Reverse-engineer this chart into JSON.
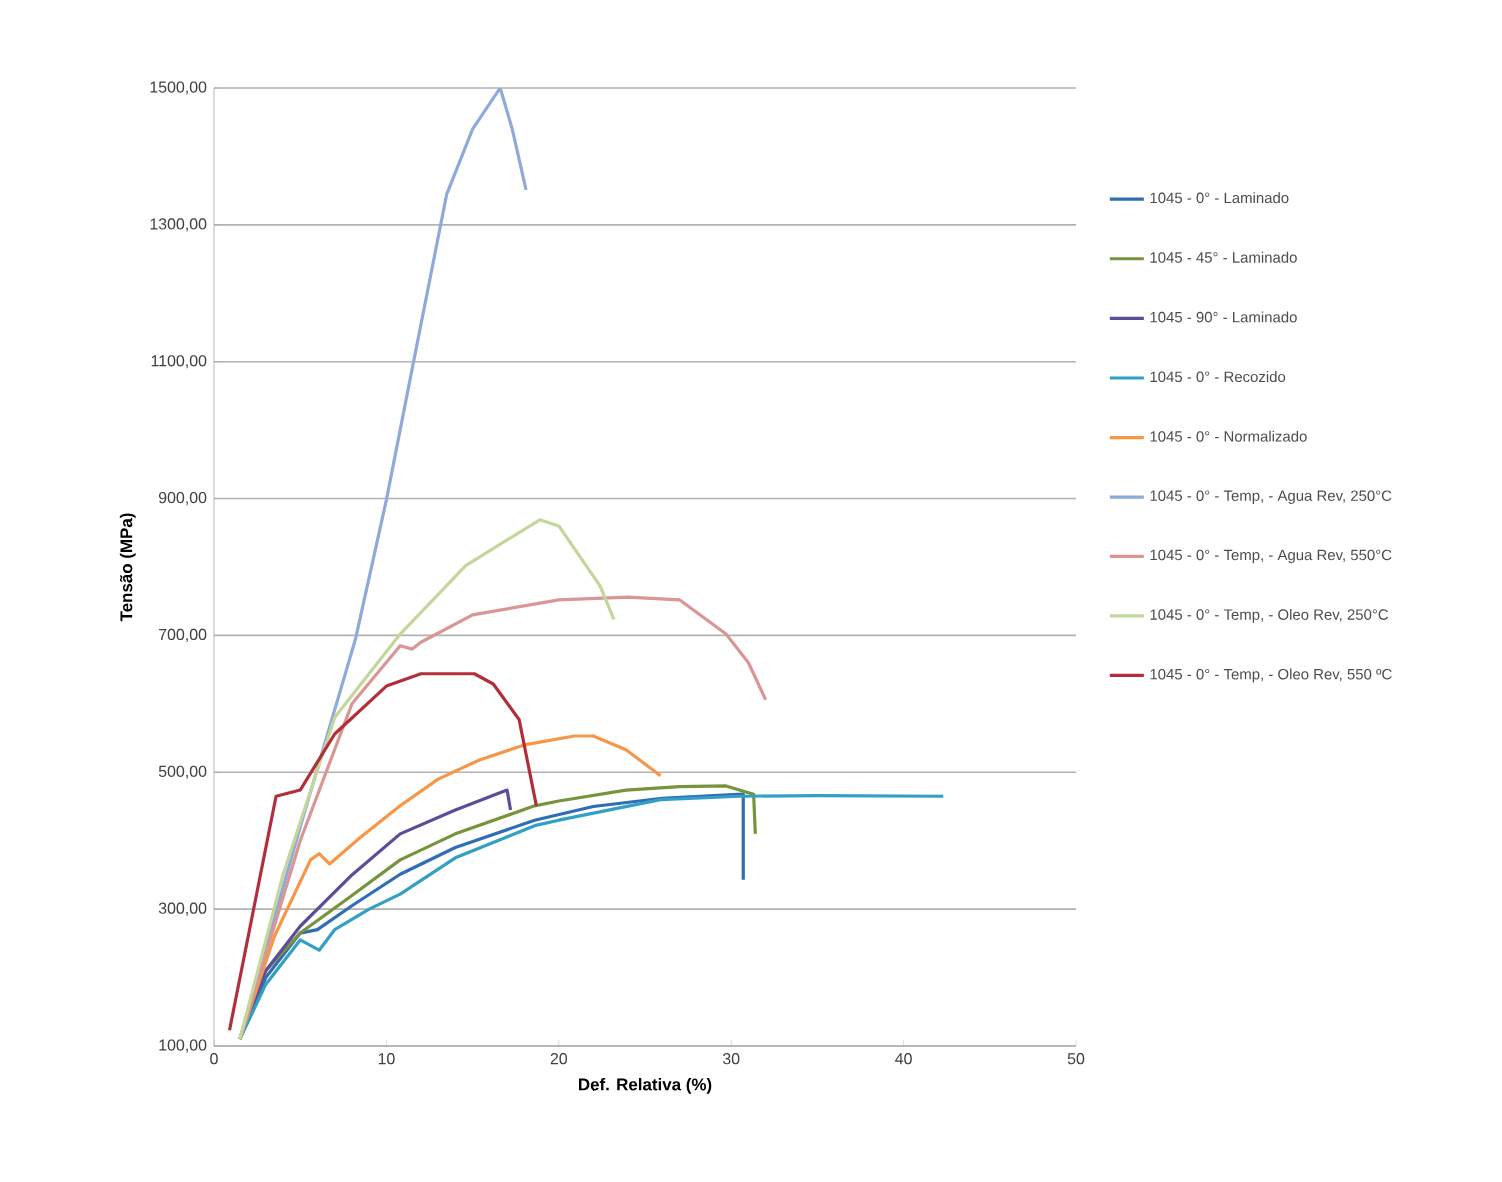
{
  "chart_data": {
    "type": "line",
    "xlabel": "Def. Relativa (%)",
    "ylabel": "Tensão (MPa)",
    "xlim": [
      0,
      50
    ],
    "xticks": [
      0,
      10,
      20,
      30,
      40,
      50
    ],
    "ylim": [
      100,
      1500
    ],
    "yticks": [
      {
        "value": 100,
        "label": "100,00"
      },
      {
        "value": 300,
        "label": "300,00"
      },
      {
        "value": 500,
        "label": "500,00"
      },
      {
        "value": 700,
        "label": "700,00"
      },
      {
        "value": 900,
        "label": "900,00"
      },
      {
        "value": 1100,
        "label": "1100,00"
      },
      {
        "value": 1300,
        "label": "1300,00"
      },
      {
        "value": 1500,
        "label": "1500,00"
      }
    ],
    "grid": "y",
    "legend": "right",
    "series": [
      {
        "name": "1045 - 0° - Laminado",
        "color": "#2f6db5",
        "x": [
          1.5,
          3,
          5,
          6,
          8,
          10.8,
          14,
          18.6,
          22,
          26,
          29,
          30.7,
          30.7
        ],
        "values": [
          110,
          200,
          265,
          270,
          305,
          351,
          390,
          430,
          450,
          462,
          466,
          468,
          343
        ]
      },
      {
        "name": "1045 - 45° - Laminado",
        "color": "#77933c",
        "x": [
          1.5,
          3,
          5,
          8,
          10.8,
          14,
          18.6,
          20,
          23.9,
          27,
          29.7,
          31.3,
          31.4
        ],
        "values": [
          110,
          210,
          265,
          320,
          372,
          410,
          451,
          458,
          474,
          479,
          480,
          468,
          410
        ]
      },
      {
        "name": "1045 - 90° - Laminado",
        "color": "#5c4d9a",
        "x": [
          1.5,
          3,
          5,
          8,
          10.8,
          14,
          17,
          17.2
        ],
        "values": [
          110,
          210,
          275,
          350,
          410,
          445,
          474,
          445
        ]
      },
      {
        "name": "1045 - 0° - Recozido",
        "color": "#31a0c4",
        "x": [
          1.5,
          3,
          5,
          6.1,
          7,
          9,
          10.8,
          14,
          18.6,
          20,
          25.9,
          30.5,
          35,
          42.3
        ],
        "values": [
          110,
          190,
          255,
          240,
          270,
          300,
          322,
          375,
          422,
          430,
          460,
          465,
          466,
          465
        ]
      },
      {
        "name": "1045 - 0° - Normalizado",
        "color": "#f79646",
        "x": [
          1.5,
          3.5,
          5.6,
          6.1,
          6.7,
          8.5,
          10.8,
          13,
          15.4,
          18,
          20.9,
          22,
          23.9,
          25.9
        ],
        "values": [
          110,
          260,
          372,
          381,
          366,
          405,
          451,
          490,
          518,
          540,
          553,
          553,
          533,
          495
        ]
      },
      {
        "name": "1045 - 0° -  Temp, - Agua Rev, 250°C",
        "color": "#8eaadb",
        "x": [
          1.5,
          5,
          8.2,
          10,
          11.6,
          13.5,
          15,
          16.6,
          17.3,
          18.1
        ],
        "values": [
          110,
          420,
          694,
          898,
          1103,
          1345,
          1440,
          1500,
          1440,
          1351
        ]
      },
      {
        "name": "1045 - 0° -  Temp, - Agua Rev, 550°C",
        "color": "#d99694",
        "x": [
          1.5,
          5,
          8,
          10.8,
          11.5,
          12,
          15,
          20,
          24,
          27,
          29.7,
          31,
          32
        ],
        "values": [
          110,
          400,
          600,
          685,
          680,
          690,
          730,
          752,
          756,
          752,
          702,
          660,
          606
        ]
      },
      {
        "name": "1045 - 0° -  Temp, - Oleo Rev, 250°C",
        "color": "#c3d69b",
        "x": [
          1.5,
          4,
          7,
          10.8,
          14.6,
          18.9,
          20,
          22.4,
          23.2
        ],
        "values": [
          110,
          350,
          580,
          702,
          802,
          869,
          860,
          772,
          723
        ]
      },
      {
        "name": "1045 - 0° - Temp, - Oleo Rev, 550 ºC",
        "color": "#b22f3a",
        "x": [
          0.9,
          3.6,
          5,
          7,
          10,
          12,
          15.1,
          16.2,
          17.7,
          18.7
        ],
        "values": [
          123,
          465,
          474,
          556,
          626,
          644,
          644,
          629,
          577,
          451
        ]
      }
    ]
  }
}
